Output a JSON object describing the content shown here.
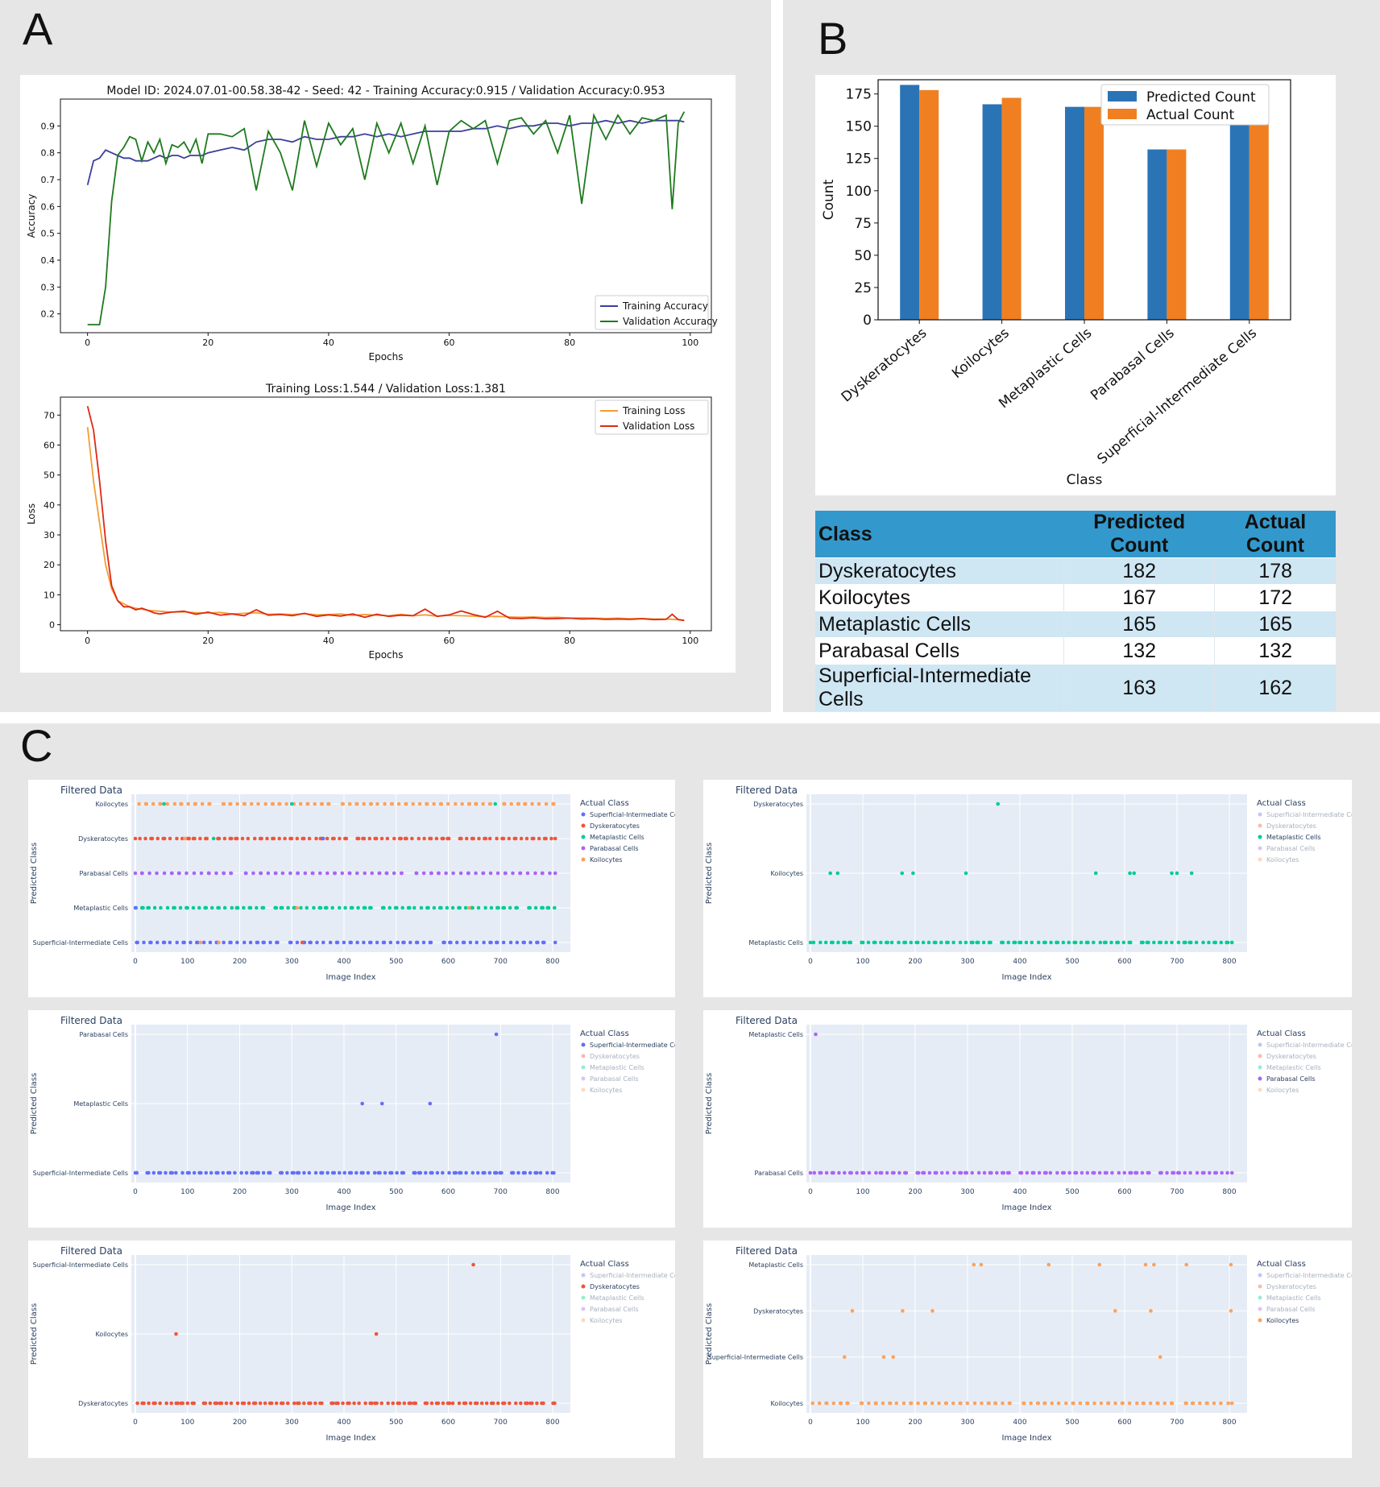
{
  "panels": {
    "a": "A",
    "b": "B",
    "c": "C"
  },
  "chart_data": [
    {
      "id": "accuracy",
      "type": "line",
      "title": "Model ID: 2024.07.01-00.58.38-42 - Seed: 42 - Training Accuracy:0.915 / Validation Accuracy:0.953",
      "xlabel": "Epochs",
      "ylabel": "Accuracy",
      "xlim": [
        -4.5,
        103.5
      ],
      "ylim": [
        0.13,
        1.0
      ],
      "xticks": [
        0,
        20,
        40,
        60,
        80,
        100
      ],
      "yticks": [
        0.2,
        0.3,
        0.4,
        0.5,
        0.6,
        0.7,
        0.8,
        0.9
      ],
      "legend": "lower-right",
      "series": [
        {
          "name": "Training Accuracy",
          "color": "#3b3f99",
          "x": [
            0,
            1,
            2,
            3,
            4,
            5,
            6,
            7,
            8,
            9,
            10,
            11,
            12,
            13,
            14,
            15,
            16,
            17,
            18,
            19,
            20,
            22,
            24,
            26,
            28,
            30,
            32,
            34,
            36,
            38,
            40,
            42,
            44,
            46,
            48,
            50,
            52,
            54,
            56,
            58,
            60,
            62,
            64,
            66,
            68,
            70,
            72,
            74,
            76,
            78,
            80,
            82,
            84,
            86,
            88,
            90,
            92,
            94,
            96,
            98,
            99
          ],
          "y": [
            0.68,
            0.77,
            0.78,
            0.81,
            0.8,
            0.79,
            0.78,
            0.78,
            0.77,
            0.77,
            0.77,
            0.78,
            0.79,
            0.78,
            0.79,
            0.79,
            0.78,
            0.79,
            0.79,
            0.79,
            0.8,
            0.81,
            0.82,
            0.81,
            0.84,
            0.85,
            0.85,
            0.84,
            0.86,
            0.85,
            0.85,
            0.86,
            0.86,
            0.87,
            0.86,
            0.87,
            0.86,
            0.87,
            0.88,
            0.88,
            0.88,
            0.88,
            0.89,
            0.89,
            0.9,
            0.89,
            0.9,
            0.9,
            0.91,
            0.91,
            0.9,
            0.91,
            0.91,
            0.92,
            0.91,
            0.92,
            0.91,
            0.92,
            0.92,
            0.92,
            0.915
          ]
        },
        {
          "name": "Validation Accuracy",
          "color": "#1e7a1e",
          "x": [
            0,
            1,
            2,
            3,
            4,
            5,
            6,
            7,
            8,
            9,
            10,
            11,
            12,
            13,
            14,
            15,
            16,
            17,
            18,
            19,
            20,
            22,
            24,
            26,
            28,
            30,
            32,
            34,
            36,
            38,
            40,
            42,
            44,
            46,
            48,
            50,
            52,
            54,
            56,
            58,
            60,
            62,
            64,
            66,
            68,
            70,
            72,
            74,
            76,
            78,
            80,
            82,
            84,
            86,
            88,
            90,
            92,
            94,
            96,
            97,
            98,
            99
          ],
          "y": [
            0.16,
            0.16,
            0.16,
            0.3,
            0.62,
            0.79,
            0.82,
            0.86,
            0.85,
            0.77,
            0.84,
            0.8,
            0.85,
            0.76,
            0.83,
            0.82,
            0.84,
            0.8,
            0.85,
            0.76,
            0.87,
            0.87,
            0.86,
            0.89,
            0.66,
            0.88,
            0.8,
            0.66,
            0.92,
            0.75,
            0.91,
            0.83,
            0.89,
            0.7,
            0.91,
            0.8,
            0.91,
            0.76,
            0.9,
            0.68,
            0.88,
            0.92,
            0.89,
            0.92,
            0.76,
            0.92,
            0.93,
            0.87,
            0.92,
            0.8,
            0.94,
            0.61,
            0.94,
            0.85,
            0.94,
            0.87,
            0.93,
            0.92,
            0.94,
            0.59,
            0.91,
            0.953
          ]
        }
      ]
    },
    {
      "id": "loss",
      "type": "line",
      "title": "Training Loss:1.544 / Validation Loss:1.381",
      "xlabel": "Epochs",
      "ylabel": "Loss",
      "xlim": [
        -4.5,
        103.5
      ],
      "ylim": [
        -2,
        76
      ],
      "xticks": [
        0,
        20,
        40,
        60,
        80,
        100
      ],
      "yticks": [
        0,
        10,
        20,
        30,
        40,
        50,
        60,
        70
      ],
      "legend": "upper-right",
      "series": [
        {
          "name": "Training Loss",
          "color": "#f39c33",
          "x": [
            0,
            1,
            2,
            3,
            4,
            5,
            6,
            7,
            8,
            9,
            10,
            12,
            14,
            16,
            18,
            20,
            22,
            24,
            26,
            28,
            30,
            32,
            34,
            36,
            38,
            40,
            42,
            44,
            46,
            48,
            50,
            52,
            54,
            56,
            58,
            60,
            62,
            64,
            66,
            68,
            70,
            72,
            74,
            76,
            78,
            80,
            82,
            84,
            86,
            88,
            90,
            92,
            94,
            96,
            98,
            99
          ],
          "y": [
            66,
            48,
            34,
            20,
            12,
            8,
            7,
            6,
            5.5,
            5.2,
            4.8,
            4.5,
            4.2,
            4.3,
            4,
            3.9,
            4.1,
            3.6,
            3.8,
            4,
            3.5,
            3.6,
            3.4,
            3.7,
            3.3,
            3.4,
            3.6,
            3.1,
            3.4,
            3.2,
            3.0,
            3.5,
            3.0,
            3.3,
            2.9,
            3.1,
            3.0,
            2.9,
            2.7,
            2.8,
            2.6,
            2.5,
            2.6,
            2.4,
            2.5,
            2.2,
            2.3,
            2.2,
            2.1,
            2.2,
            2.0,
            2.1,
            1.9,
            1.9,
            1.7,
            1.544
          ]
        },
        {
          "name": "Validation Loss",
          "color": "#dd2a12",
          "x": [
            0,
            1,
            2,
            3,
            4,
            5,
            6,
            7,
            8,
            9,
            10,
            11,
            12,
            14,
            16,
            18,
            20,
            22,
            24,
            26,
            28,
            30,
            32,
            34,
            36,
            38,
            40,
            42,
            44,
            46,
            48,
            50,
            52,
            54,
            56,
            58,
            60,
            62,
            64,
            66,
            68,
            70,
            72,
            74,
            76,
            78,
            80,
            82,
            84,
            86,
            88,
            90,
            92,
            94,
            96,
            97,
            98,
            99
          ],
          "y": [
            73,
            65,
            48,
            28,
            13,
            8,
            6,
            6,
            5,
            5.5,
            4.8,
            4,
            3.6,
            4.2,
            4.5,
            3.5,
            4.2,
            3.2,
            3.6,
            3,
            5,
            3.2,
            3.4,
            3.0,
            3.8,
            2.8,
            3.3,
            2.9,
            3.6,
            2.5,
            3.5,
            2.8,
            3.2,
            3.0,
            5.2,
            2.8,
            3.3,
            4.6,
            3.4,
            2.5,
            4.5,
            2.2,
            2.1,
            2.3,
            2.0,
            2.1,
            2.2,
            1.9,
            2.0,
            1.8,
            1.9,
            1.8,
            2.0,
            1.7,
            1.8,
            3.5,
            1.7,
            1.381
          ]
        }
      ]
    },
    {
      "id": "counts",
      "type": "bar",
      "categories": [
        "Dyskeratocytes",
        "Koilocytes",
        "Metaplastic Cells",
        "Parabasal Cells",
        "Superficial-Intermediate Cells"
      ],
      "xlabel": "Class",
      "ylabel": "Count",
      "ylim": [
        0,
        186
      ],
      "yticks": [
        0,
        25,
        50,
        75,
        100,
        125,
        150,
        175
      ],
      "legend": "top-right",
      "series": [
        {
          "name": "Predicted Count",
          "color": "#2a74b6",
          "values": [
            182,
            167,
            165,
            132,
            163
          ]
        },
        {
          "name": "Actual Count",
          "color": "#f07f22",
          "values": [
            178,
            172,
            165,
            132,
            162
          ]
        }
      ]
    },
    {
      "id": "counts-table",
      "type": "table",
      "columns": [
        "Class",
        "Predicted Count",
        "Actual Count"
      ],
      "rows": [
        [
          "Dyskeratocytes",
          "182",
          "178"
        ],
        [
          "Koilocytes",
          "167",
          "172"
        ],
        [
          "Metaplastic Cells",
          "165",
          "165"
        ],
        [
          "Parabasal Cells",
          "132",
          "132"
        ],
        [
          "Superficial-Intermediate Cells",
          "163",
          "162"
        ]
      ]
    }
  ],
  "scatter_common": {
    "title": "Filtered Data",
    "xlabel": "Image Index",
    "ylabel": "Predicted Class",
    "legend_title": "Actual Class",
    "legend_items": [
      "Superficial-Intermediate Cel",
      "Dyskeratocytes",
      "Metaplastic Cells",
      "Parabasal Cells",
      "Koilocytes"
    ],
    "legend_colors": [
      "#636efa",
      "#ef553b",
      "#00cc96",
      "#ab63fa",
      "#ffa15a"
    ],
    "xticks": [
      0,
      100,
      200,
      300,
      400,
      500,
      600,
      700,
      800
    ]
  },
  "scatters": [
    {
      "type": "scatter",
      "active": [
        0,
        1,
        2,
        3,
        4
      ],
      "y_categories": [
        "Superficial-Intermediate Cells",
        "Metaplastic Cells",
        "Parabasal Cells",
        "Dyskeratocytes",
        "Koilocytes"
      ],
      "rows": [
        {
          "cat": 4,
          "color": "#ffa15a",
          "n": 95,
          "extras": [
            {
              "x": 55,
              "color": "#00cc96"
            },
            {
              "x": 300,
              "color": "#00cc96"
            },
            {
              "x": 690,
              "color": "#00cc96"
            }
          ]
        },
        {
          "cat": 3,
          "color": "#ef553b",
          "n": 110,
          "extras": [
            {
              "x": 95,
              "color": "#ffa15a"
            },
            {
              "x": 150,
              "color": "#00cc96"
            },
            {
              "x": 360,
              "color": "#636efa"
            }
          ]
        },
        {
          "cat": 2,
          "color": "#ab63fa",
          "n": 90,
          "extras": []
        },
        {
          "cat": 1,
          "color": "#00cc96",
          "n": 105,
          "extras": [
            {
              "x": 0,
              "color": "#636efa"
            },
            {
              "x": 310,
              "color": "#ffa15a"
            },
            {
              "x": 640,
              "color": "#ffa15a"
            }
          ]
        },
        {
          "cat": 0,
          "color": "#636efa",
          "n": 100,
          "extras": [
            {
              "x": 125,
              "color": "#ffa15a"
            },
            {
              "x": 160,
              "color": "#ffa15a"
            },
            {
              "x": 320,
              "color": "#ef553b"
            }
          ]
        }
      ]
    },
    {
      "type": "scatter",
      "active": [
        2
      ],
      "y_categories": [
        "Metaplastic Cells",
        "Koilocytes",
        "Dyskeratocytes"
      ],
      "rows": [
        {
          "cat": 2,
          "color": "#00cc96",
          "xs": [
            358
          ]
        },
        {
          "cat": 1,
          "color": "#00cc96",
          "xs": [
            38,
            52,
            175,
            196,
            297,
            545,
            610,
            618,
            690,
            700,
            728
          ]
        },
        {
          "cat": 0,
          "color": "#00cc96",
          "n": 110
        }
      ]
    },
    {
      "type": "scatter",
      "active": [
        0
      ],
      "y_categories": [
        "Superficial-Intermediate Cells",
        "Metaplastic Cells",
        "Parabasal Cells"
      ],
      "rows": [
        {
          "cat": 2,
          "color": "#636efa",
          "xs": [
            692
          ]
        },
        {
          "cat": 1,
          "color": "#636efa",
          "xs": [
            435,
            473,
            565
          ]
        },
        {
          "cat": 0,
          "color": "#636efa",
          "n": 115
        }
      ]
    },
    {
      "type": "scatter",
      "active": [
        3
      ],
      "y_categories": [
        "Parabasal Cells",
        "Metaplastic Cells"
      ],
      "rows": [
        {
          "cat": 1,
          "color": "#ab63fa",
          "xs": [
            10
          ]
        },
        {
          "cat": 0,
          "color": "#ab63fa",
          "n": 110
        }
      ]
    },
    {
      "type": "scatter",
      "active": [
        1
      ],
      "y_categories": [
        "Dyskeratocytes",
        "Koilocytes",
        "Superficial-Intermediate Cells"
      ],
      "rows": [
        {
          "cat": 2,
          "color": "#ef553b",
          "xs": [
            648
          ]
        },
        {
          "cat": 1,
          "color": "#ef553b",
          "xs": [
            78,
            462
          ]
        },
        {
          "cat": 0,
          "color": "#ef553b",
          "n": 120
        }
      ]
    },
    {
      "type": "scatter",
      "active": [
        4
      ],
      "y_categories": [
        "Koilocytes",
        "Superficial-Intermediate Cells",
        "Dyskeratocytes",
        "Metaplastic Cells"
      ],
      "rows": [
        {
          "cat": 3,
          "color": "#ffa15a",
          "xs": [
            312,
            326,
            455,
            552,
            640,
            656,
            718,
            803
          ]
        },
        {
          "cat": 2,
          "color": "#ffa15a",
          "xs": [
            80,
            176,
            233,
            582,
            650,
            803
          ]
        },
        {
          "cat": 1,
          "color": "#ffa15a",
          "xs": [
            65,
            140,
            158,
            668
          ]
        },
        {
          "cat": 0,
          "color": "#ffa15a",
          "n": 95
        }
      ]
    }
  ]
}
